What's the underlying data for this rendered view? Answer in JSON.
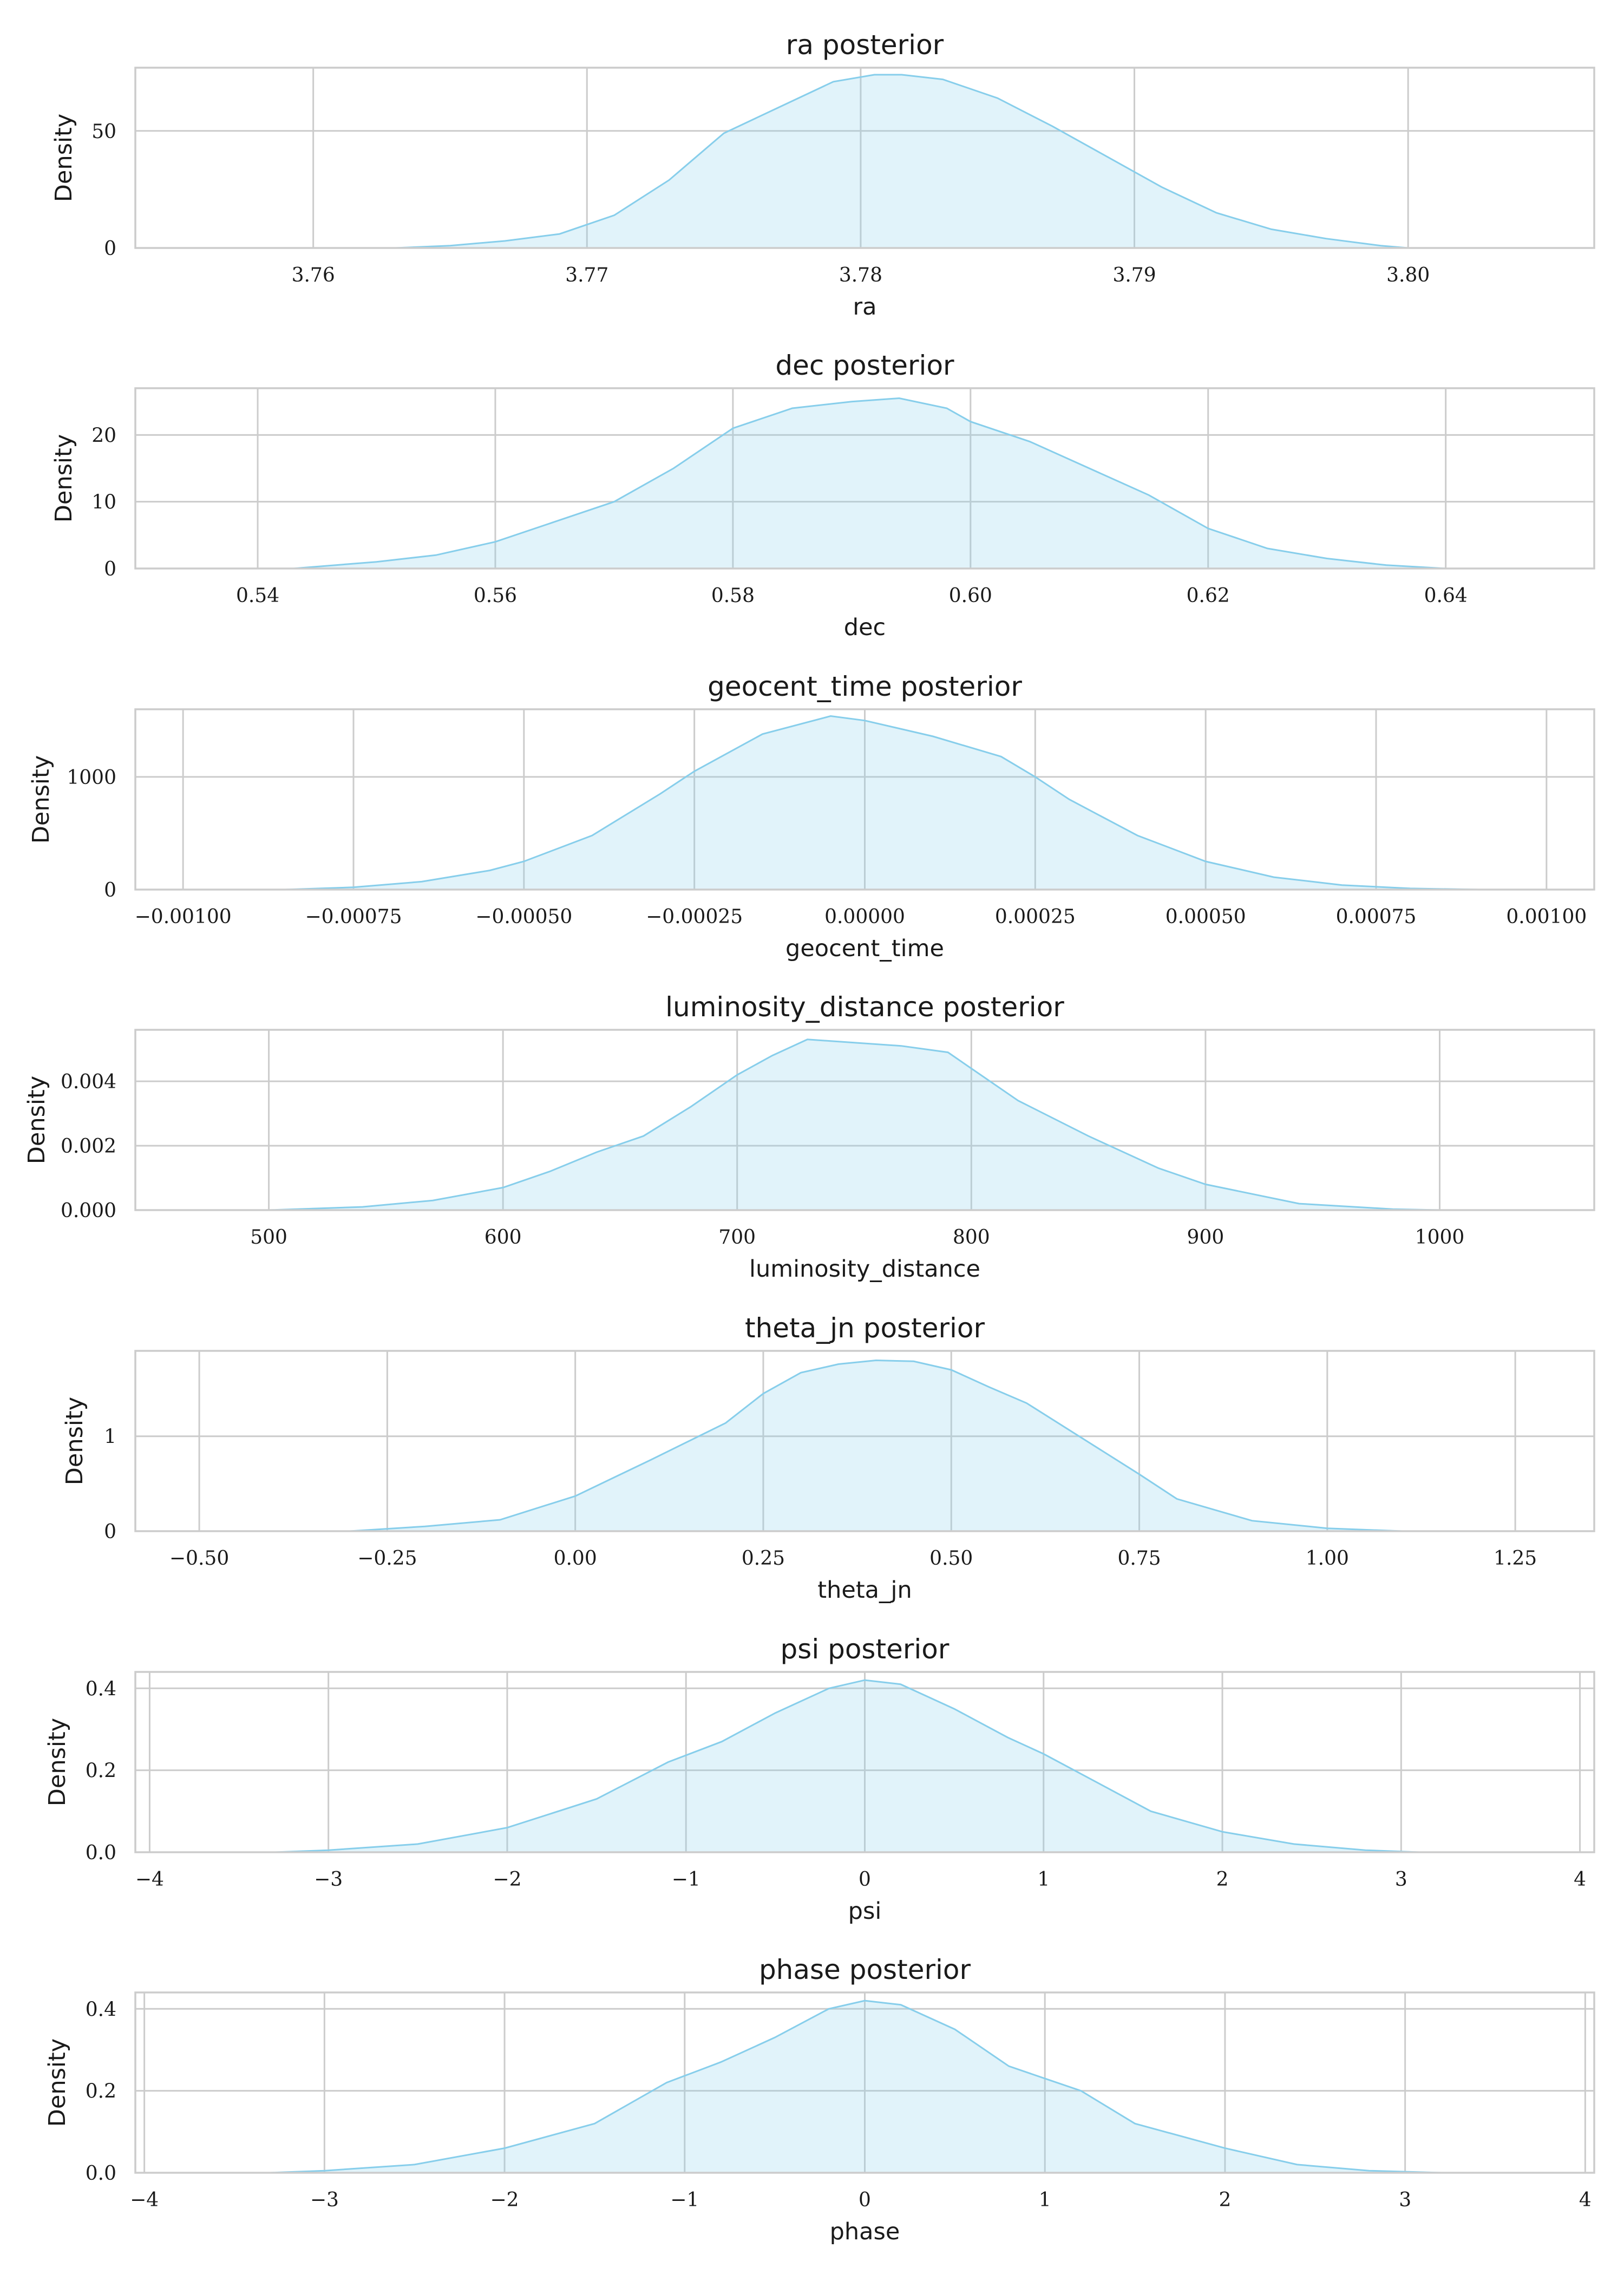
{
  "colors": {
    "accent": "#87ceeb",
    "grid": "#cccccc",
    "text": "#1a1a1a"
  },
  "chart_data": [
    {
      "type": "area",
      "title": "ra posterior",
      "xlabel": "ra",
      "ylabel": "Density",
      "xlim": [
        3.7535,
        3.8068
      ],
      "ylim": [
        0,
        77
      ],
      "xticks": [
        3.76,
        3.77,
        3.78,
        3.79,
        3.8
      ],
      "xtick_labels": [
        "3.76",
        "3.77",
        "3.78",
        "3.79",
        "3.80"
      ],
      "yticks": [
        0,
        50
      ],
      "ytick_labels": [
        "0",
        "50"
      ],
      "grid": true,
      "series": [
        {
          "x": [
            3.763,
            3.765,
            3.767,
            3.769,
            3.771,
            3.773,
            3.775,
            3.777,
            3.779,
            3.7805,
            3.7815,
            3.783,
            3.785,
            3.787,
            3.789,
            3.791,
            3.793,
            3.795,
            3.797,
            3.799,
            3.8
          ],
          "y": [
            0,
            1,
            3,
            6,
            14,
            29,
            49,
            60,
            71,
            74,
            74,
            72,
            64,
            52,
            39,
            26,
            15,
            8,
            4,
            1,
            0
          ]
        }
      ]
    },
    {
      "type": "area",
      "title": "dec posterior",
      "xlabel": "dec",
      "ylabel": "Density",
      "xlim": [
        0.5297,
        0.6525
      ],
      "ylim": [
        0,
        27
      ],
      "xticks": [
        0.54,
        0.56,
        0.58,
        0.6,
        0.62,
        0.64
      ],
      "xtick_labels": [
        "0.54",
        "0.56",
        "0.58",
        "0.60",
        "0.62",
        "0.64"
      ],
      "yticks": [
        0,
        10,
        20
      ],
      "ytick_labels": [
        "0",
        "10",
        "20"
      ],
      "grid": true,
      "series": [
        {
          "x": [
            0.543,
            0.55,
            0.555,
            0.56,
            0.565,
            0.57,
            0.575,
            0.58,
            0.585,
            0.59,
            0.594,
            0.598,
            0.6,
            0.605,
            0.61,
            0.615,
            0.62,
            0.625,
            0.63,
            0.635,
            0.64
          ],
          "y": [
            0,
            1,
            2,
            4,
            7,
            10,
            15,
            21,
            24,
            25,
            25.5,
            24,
            22,
            19,
            15,
            11,
            6,
            3,
            1.5,
            0.5,
            0
          ]
        }
      ]
    },
    {
      "type": "area",
      "title": "geocent_time posterior",
      "xlabel": "geocent_time",
      "ylabel": "Density",
      "xlim": [
        -0.00107,
        0.00107
      ],
      "ylim": [
        0,
        1600
      ],
      "xticks": [
        -0.001,
        -0.00075,
        -0.0005,
        -0.00025,
        0,
        0.00025,
        0.0005,
        0.00075,
        0.001
      ],
      "xtick_labels": [
        "−0.00100",
        "−0.00075",
        "−0.00050",
        "−0.00025",
        "0.00000",
        "0.00025",
        "0.00050",
        "0.00075",
        "0.00100"
      ],
      "yticks": [
        0,
        1000
      ],
      "ytick_labels": [
        "0",
        "1000"
      ],
      "grid": true,
      "series": [
        {
          "x": [
            -0.00085,
            -0.00075,
            -0.00065,
            -0.00055,
            -0.0005,
            -0.0004,
            -0.0003,
            -0.00025,
            -0.00015,
            -5e-05,
            0,
            0.0001,
            0.0002,
            0.00025,
            0.0003,
            0.0004,
            0.0005,
            0.0006,
            0.0007,
            0.0008,
            0.0009
          ],
          "y": [
            0,
            20,
            70,
            170,
            250,
            480,
            850,
            1050,
            1380,
            1540,
            1500,
            1360,
            1180,
            1000,
            800,
            480,
            250,
            110,
            40,
            10,
            0
          ]
        }
      ]
    },
    {
      "type": "area",
      "title": "luminosity_distance posterior",
      "xlabel": "luminosity_distance",
      "ylabel": "Density",
      "xlim": [
        443,
        1066
      ],
      "ylim": [
        0,
        0.0056
      ],
      "xticks": [
        500,
        600,
        700,
        800,
        900,
        1000
      ],
      "xtick_labels": [
        "500",
        "600",
        "700",
        "800",
        "900",
        "1000"
      ],
      "yticks": [
        0,
        0.002,
        0.004
      ],
      "ytick_labels": [
        "0.000",
        "0.002",
        "0.004"
      ],
      "grid": true,
      "series": [
        {
          "x": [
            500,
            540,
            570,
            600,
            620,
            640,
            660,
            680,
            700,
            715,
            730,
            750,
            770,
            790,
            800,
            820,
            850,
            880,
            900,
            940,
            980,
            1000
          ],
          "y": [
            0,
            0.0001,
            0.0003,
            0.0007,
            0.0012,
            0.0018,
            0.0023,
            0.0032,
            0.0042,
            0.0048,
            0.0053,
            0.0052,
            0.0051,
            0.0049,
            0.0044,
            0.0034,
            0.0023,
            0.0013,
            0.0008,
            0.0002,
            3e-05,
            0
          ]
        }
      ]
    },
    {
      "type": "area",
      "title": "theta_jn posterior",
      "xlabel": "theta_jn",
      "ylabel": "Density",
      "xlim": [
        -0.585,
        1.355
      ],
      "ylim": [
        0,
        1.9
      ],
      "xticks": [
        -0.5,
        -0.25,
        0,
        0.25,
        0.5,
        0.75,
        1.0,
        1.25
      ],
      "xtick_labels": [
        "−0.50",
        "−0.25",
        "0.00",
        "0.25",
        "0.50",
        "0.75",
        "1.00",
        "1.25"
      ],
      "yticks": [
        0,
        1
      ],
      "ytick_labels": [
        "0",
        "1"
      ],
      "grid": true,
      "series": [
        {
          "x": [
            -0.3,
            -0.2,
            -0.1,
            0,
            0.1,
            0.2,
            0.25,
            0.3,
            0.35,
            0.4,
            0.45,
            0.5,
            0.55,
            0.6,
            0.7,
            0.75,
            0.8,
            0.9,
            1.0,
            1.1
          ],
          "y": [
            0,
            0.05,
            0.12,
            0.37,
            0.75,
            1.14,
            1.45,
            1.67,
            1.76,
            1.8,
            1.79,
            1.7,
            1.52,
            1.35,
            0.85,
            0.6,
            0.34,
            0.11,
            0.03,
            0
          ]
        }
      ]
    },
    {
      "type": "area",
      "title": "psi posterior",
      "xlabel": "psi",
      "ylabel": "Density",
      "xlim": [
        -4.08,
        4.08
      ],
      "ylim": [
        0,
        0.44
      ],
      "xticks": [
        -4,
        -3,
        -2,
        -1,
        0,
        1,
        2,
        3,
        4
      ],
      "xtick_labels": [
        "−4",
        "−3",
        "−2",
        "−1",
        "0",
        "1",
        "2",
        "3",
        "4"
      ],
      "yticks": [
        0,
        0.2,
        0.4
      ],
      "ytick_labels": [
        "0.0",
        "0.2",
        "0.4"
      ],
      "grid": true,
      "series": [
        {
          "x": [
            -3.3,
            -3.0,
            -2.5,
            -2.0,
            -1.5,
            -1.1,
            -0.8,
            -0.5,
            -0.2,
            0,
            0.2,
            0.5,
            0.8,
            1.0,
            1.3,
            1.6,
            2.0,
            2.4,
            2.8,
            3.1
          ],
          "y": [
            0,
            0.005,
            0.02,
            0.06,
            0.13,
            0.22,
            0.27,
            0.34,
            0.4,
            0.42,
            0.41,
            0.35,
            0.28,
            0.24,
            0.17,
            0.1,
            0.05,
            0.02,
            0.005,
            0
          ]
        }
      ]
    },
    {
      "type": "area",
      "title": "phase posterior",
      "xlabel": "phase",
      "ylabel": "Density",
      "xlim": [
        -4.05,
        4.05
      ],
      "ylim": [
        0,
        0.44
      ],
      "xticks": [
        -4,
        -3,
        -2,
        -1,
        0,
        1,
        2,
        3,
        4
      ],
      "xtick_labels": [
        "−4",
        "−3",
        "−2",
        "−1",
        "0",
        "1",
        "2",
        "3",
        "4"
      ],
      "yticks": [
        0,
        0.2,
        0.4
      ],
      "ytick_labels": [
        "0.0",
        "0.2",
        "0.4"
      ],
      "grid": true,
      "series": [
        {
          "x": [
            -3.3,
            -3.0,
            -2.5,
            -2.0,
            -1.5,
            -1.1,
            -0.8,
            -0.5,
            -0.2,
            0,
            0.2,
            0.5,
            0.8,
            1.0,
            1.2,
            1.5,
            2.0,
            2.4,
            2.8,
            3.2
          ],
          "y": [
            0,
            0.005,
            0.02,
            0.06,
            0.12,
            0.22,
            0.27,
            0.33,
            0.4,
            0.42,
            0.41,
            0.35,
            0.26,
            0.23,
            0.2,
            0.12,
            0.06,
            0.02,
            0.005,
            0
          ]
        }
      ]
    }
  ]
}
